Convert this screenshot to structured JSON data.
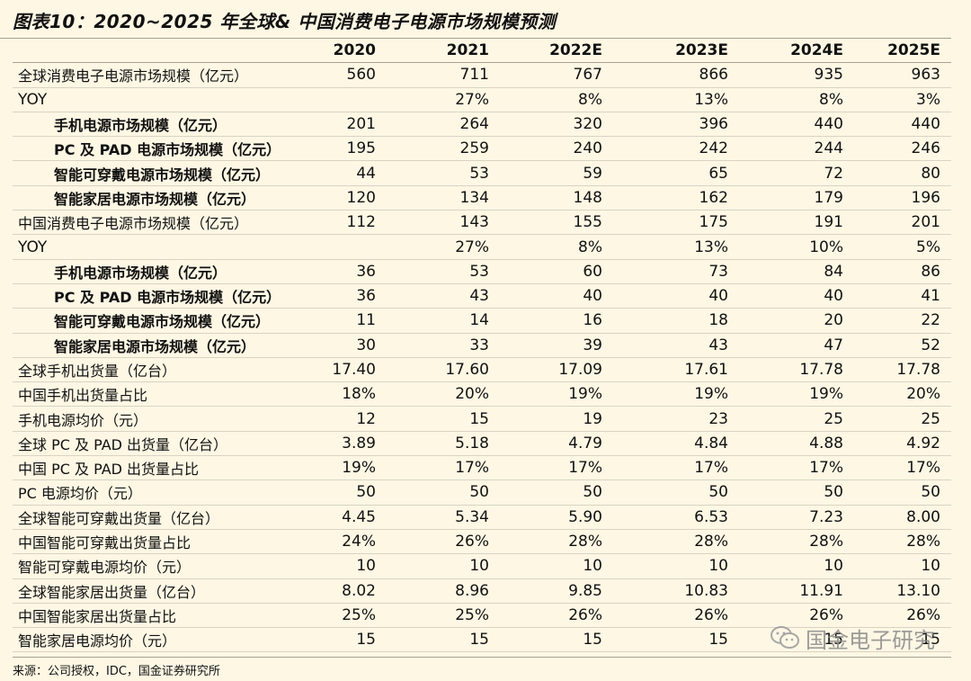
{
  "title": "图表10：2020~2025 年全球& 中国消费电子电源市场规模预测",
  "columns": [
    "",
    "2020",
    "2021",
    "2022E",
    "2023E",
    "2024E",
    "2025E"
  ],
  "rows": [
    {
      "label": "全球消费电子电源市场规模（亿元）",
      "indent": false,
      "values": [
        "560",
        "711",
        "767",
        "866",
        "935",
        "963"
      ]
    },
    {
      "label": "YOY",
      "indent": false,
      "values": [
        "",
        "27%",
        "8%",
        "13%",
        "8%",
        "3%"
      ]
    },
    {
      "label": "手机电源市场规模（亿元）",
      "indent": true,
      "values": [
        "201",
        "264",
        "320",
        "396",
        "440",
        "440"
      ]
    },
    {
      "label": "PC 及 PAD 电源市场规模（亿元）",
      "indent": true,
      "values": [
        "195",
        "259",
        "240",
        "242",
        "244",
        "246"
      ]
    },
    {
      "label": "智能可穿戴电源市场规模（亿元）",
      "indent": true,
      "values": [
        "44",
        "53",
        "59",
        "65",
        "72",
        "80"
      ]
    },
    {
      "label": "智能家居电源市场规模（亿元）",
      "indent": true,
      "values": [
        "120",
        "134",
        "148",
        "162",
        "179",
        "196"
      ]
    },
    {
      "label": "中国消费电子电源市场规模（亿元）",
      "indent": false,
      "values": [
        "112",
        "143",
        "155",
        "175",
        "191",
        "201"
      ]
    },
    {
      "label": "YOY",
      "indent": false,
      "values": [
        "",
        "27%",
        "8%",
        "13%",
        "10%",
        "5%"
      ]
    },
    {
      "label": "手机电源市场规模（亿元）",
      "indent": true,
      "values": [
        "36",
        "53",
        "60",
        "73",
        "84",
        "86"
      ]
    },
    {
      "label": "PC 及 PAD 电源市场规模（亿元）",
      "indent": true,
      "values": [
        "36",
        "43",
        "40",
        "40",
        "40",
        "41"
      ]
    },
    {
      "label": "智能可穿戴电源市场规模（亿元）",
      "indent": true,
      "values": [
        "11",
        "14",
        "16",
        "18",
        "20",
        "22"
      ]
    },
    {
      "label": "智能家居电源市场规模（亿元）",
      "indent": true,
      "values": [
        "30",
        "33",
        "39",
        "43",
        "47",
        "52"
      ]
    },
    {
      "label": "全球手机出货量（亿台）",
      "indent": false,
      "values": [
        "17.40",
        "17.60",
        "17.09",
        "17.61",
        "17.78",
        "17.78"
      ]
    },
    {
      "label": "中国手机出货量占比",
      "indent": false,
      "values": [
        "18%",
        "20%",
        "19%",
        "19%",
        "19%",
        "20%"
      ]
    },
    {
      "label": "手机电源均价（元）",
      "indent": false,
      "values": [
        "12",
        "15",
        "19",
        "23",
        "25",
        "25"
      ]
    },
    {
      "label": "全球 PC 及 PAD 出货量（亿台）",
      "indent": false,
      "values": [
        "3.89",
        "5.18",
        "4.79",
        "4.84",
        "4.88",
        "4.92"
      ]
    },
    {
      "label": "中国 PC 及 PAD 出货量占比",
      "indent": false,
      "values": [
        "19%",
        "17%",
        "17%",
        "17%",
        "17%",
        "17%"
      ]
    },
    {
      "label": "PC 电源均价（元）",
      "indent": false,
      "values": [
        "50",
        "50",
        "50",
        "50",
        "50",
        "50"
      ]
    },
    {
      "label": "全球智能可穿戴出货量（亿台）",
      "indent": false,
      "values": [
        "4.45",
        "5.34",
        "5.90",
        "6.53",
        "7.23",
        "8.00"
      ]
    },
    {
      "label": "中国智能可穿戴出货量占比",
      "indent": false,
      "values": [
        "24%",
        "26%",
        "28%",
        "28%",
        "28%",
        "28%"
      ]
    },
    {
      "label": "智能可穿戴电源均价（元）",
      "indent": false,
      "values": [
        "10",
        "10",
        "10",
        "10",
        "10",
        "10"
      ]
    },
    {
      "label": "全球智能家居出货量（亿台）",
      "indent": false,
      "values": [
        "8.02",
        "8.96",
        "9.85",
        "10.83",
        "11.91",
        "13.10"
      ]
    },
    {
      "label": "中国智能家居出货量占比",
      "indent": false,
      "values": [
        "25%",
        "25%",
        "26%",
        "26%",
        "26%",
        "26%"
      ]
    },
    {
      "label": "智能家居电源均价（元）",
      "indent": false,
      "values": [
        "15",
        "15",
        "15",
        "15",
        "15",
        "15"
      ]
    }
  ],
  "source": "来源：公司授权，IDC，国金证券研究所",
  "watermark": {
    "text": "国金电子研究",
    "icon": "wechat-icon"
  }
}
